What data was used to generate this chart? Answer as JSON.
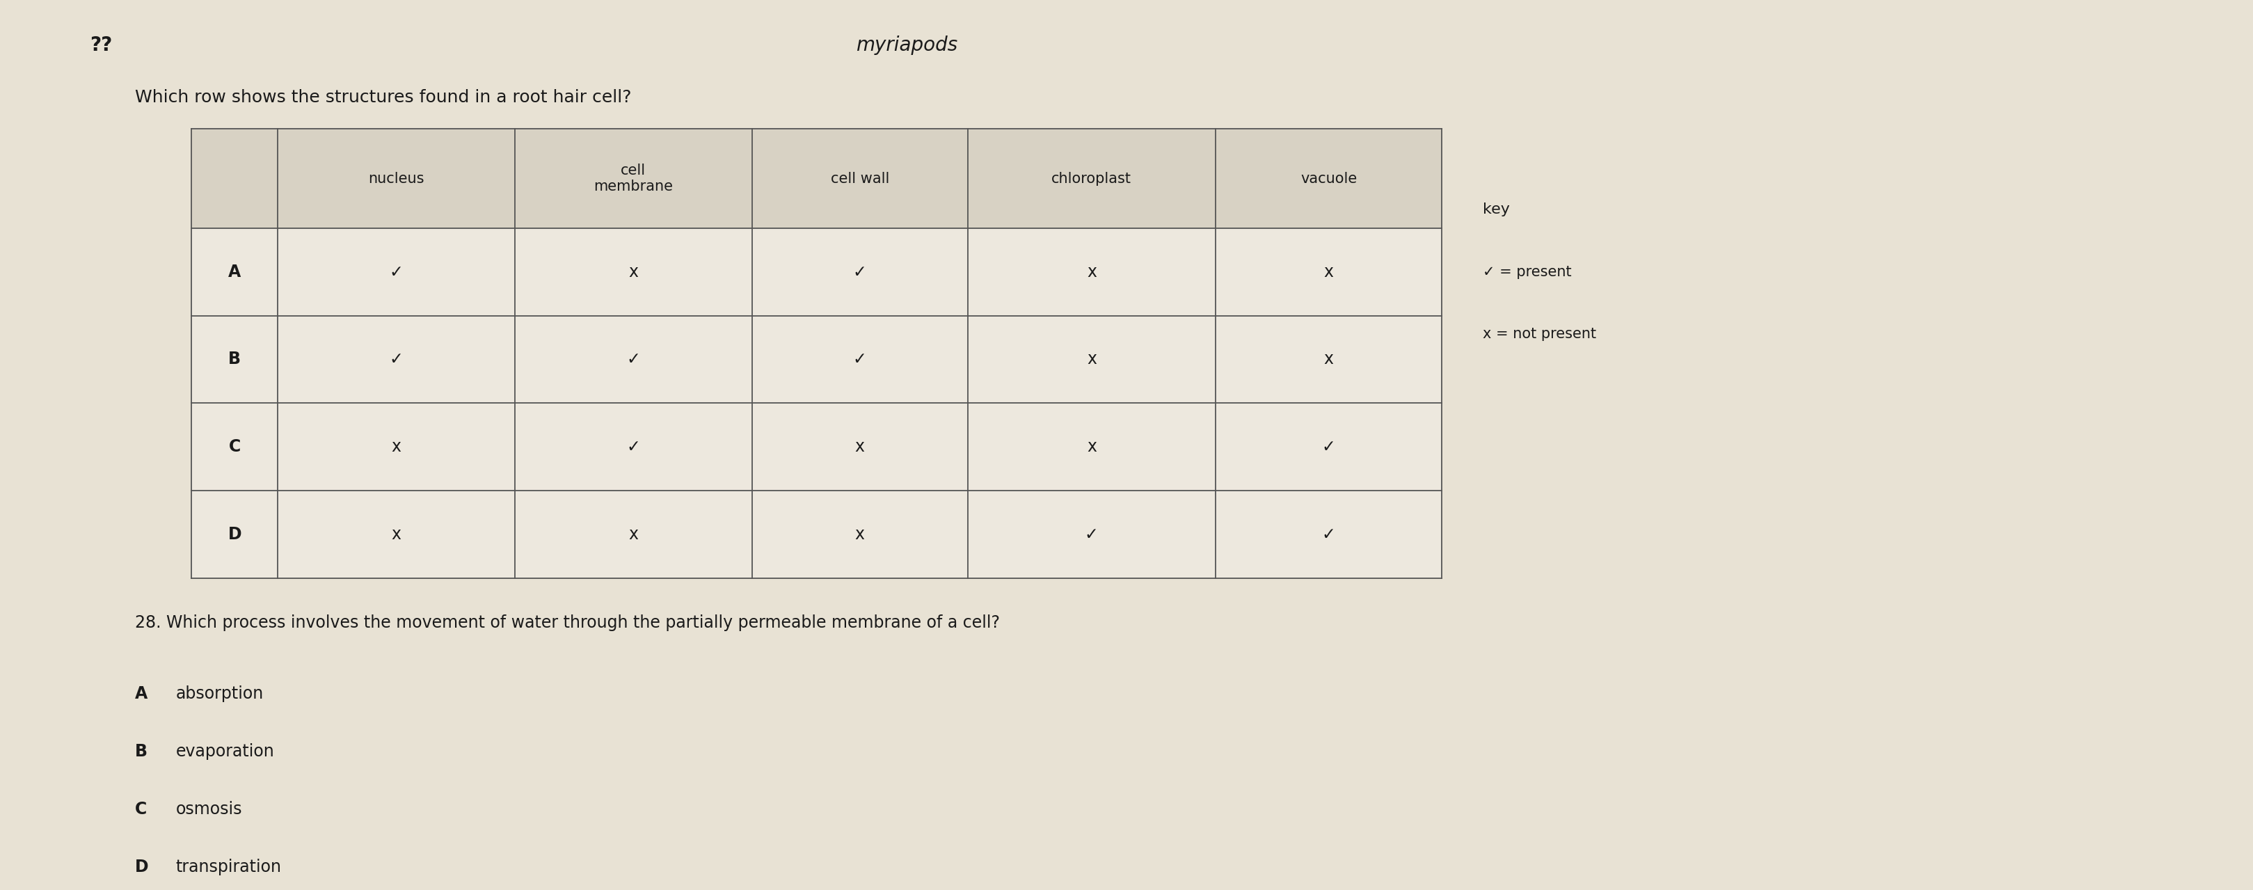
{
  "title_line1": "??",
  "title_line2": "myriapods",
  "question": "Which row shows the structures found in a root hair cell?",
  "headers": [
    "",
    "nucleus",
    "cell\nmembrane",
    "cell wall",
    "chloroplast",
    "vacuole"
  ],
  "rows": [
    [
      "A",
      "✓",
      "x",
      "✓",
      "x",
      "x"
    ],
    [
      "B",
      "✓",
      "✓",
      "✓",
      "x",
      "x"
    ],
    [
      "C",
      "x",
      "✓",
      "x",
      "x",
      "✓"
    ],
    [
      "D",
      "x",
      "x",
      "x",
      "✓",
      "✓"
    ]
  ],
  "key_title": "key",
  "key_check": "✓ = present",
  "key_cross": "x = not present",
  "q28": "28. Which process involves the movement of water through the partially permeable membrane of a cell?",
  "q28_options": [
    [
      "A",
      "absorption"
    ],
    [
      "B",
      "evaporation"
    ],
    [
      "C",
      "osmosis"
    ],
    [
      "D",
      "transpiration"
    ]
  ],
  "bg_color": "#c8c0b0",
  "page_color": "#e8e2d4",
  "text_color": "#1a1a1a",
  "header_bg": "#d8d2c4",
  "cell_bg": "#ede8de",
  "grid_color": "#555555"
}
